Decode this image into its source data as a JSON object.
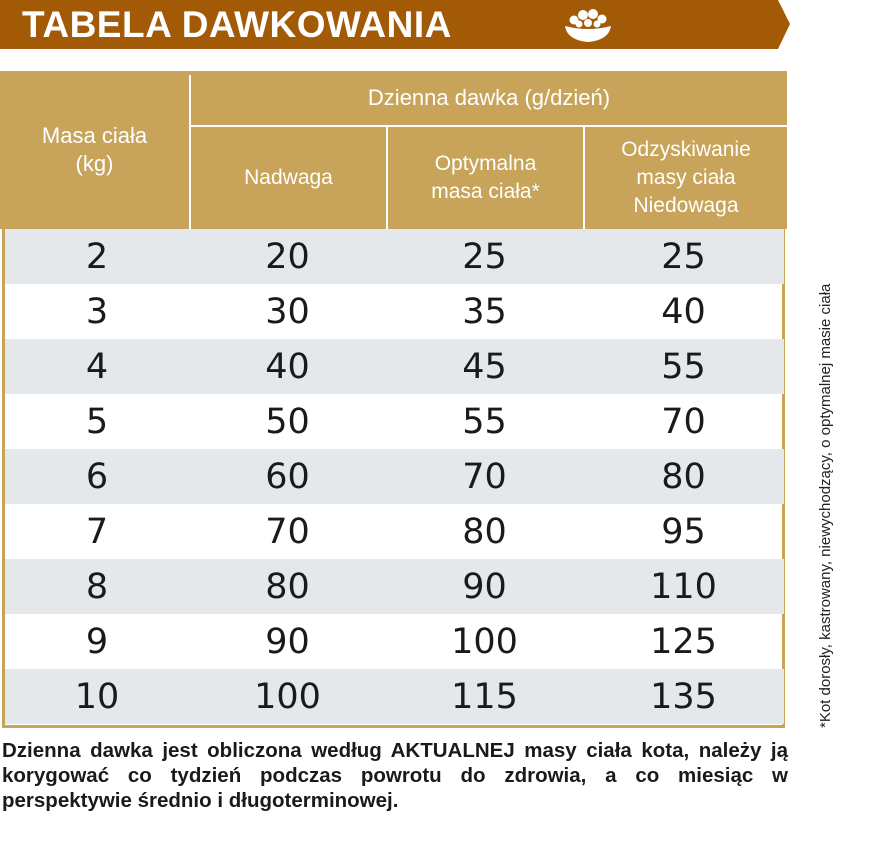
{
  "banner": {
    "title": "TABELA DAWKOWANIA",
    "color": "#a35a07",
    "icon": "food-bowl-icon"
  },
  "table": {
    "header_color": "#c7a45a",
    "shade_color": "#e5e8eb",
    "col_mass": "Masa ciała\n(kg)",
    "group_header": "Dzienna dawka (g/dzień)",
    "col_over": "Nadwaga",
    "col_optimal": "Optymalna\nmasa ciała*",
    "col_recovery": "Odzyskiwanie\nmasy ciała\nNiedowaga",
    "rows": [
      [
        "2",
        "20",
        "25",
        "25"
      ],
      [
        "3",
        "30",
        "35",
        "40"
      ],
      [
        "4",
        "40",
        "45",
        "55"
      ],
      [
        "5",
        "50",
        "55",
        "70"
      ],
      [
        "6",
        "60",
        "70",
        "80"
      ],
      [
        "7",
        "70",
        "80",
        "95"
      ],
      [
        "8",
        "80",
        "90",
        "110"
      ],
      [
        "9",
        "90",
        "100",
        "125"
      ],
      [
        "10",
        "100",
        "115",
        "135"
      ]
    ]
  },
  "side_note": "*Kot dorosły, kastrowany, niewychodzący, o optymalnej masie ciała",
  "footer": "Dzienna dawka jest obliczona według AKTUALNEJ masy ciała kota, należy ją korygować co tydzień podczas powrotu do zdrowia, a co miesiąc w perspektywie średnio i długoterminowej."
}
